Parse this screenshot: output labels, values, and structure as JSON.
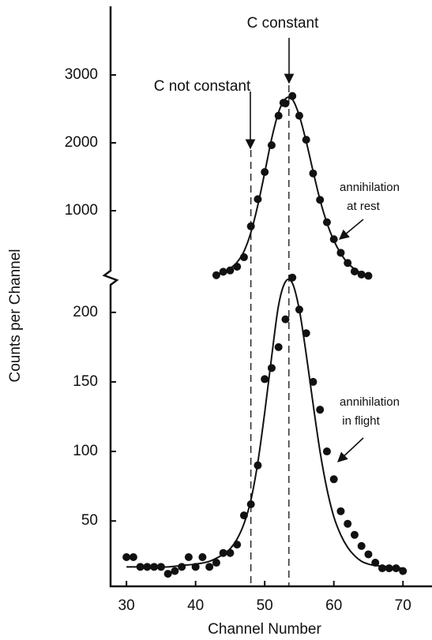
{
  "chart_data": {
    "type": "scatter",
    "xlabel": "Channel Number",
    "ylabel": "Counts per Channel",
    "xlim": [
      27.7,
      74.2
    ],
    "xticks": [
      30,
      40,
      50,
      60,
      70
    ],
    "color": "#111111",
    "markers": [
      48,
      53.5
    ],
    "annotations": [
      {
        "text": "C constant",
        "x": 53.5
      },
      {
        "text": "C not constant",
        "x": 48
      },
      {
        "lines": [
          "annihilation",
          "at rest"
        ]
      },
      {
        "lines": [
          "annihilation",
          "in flight"
        ]
      }
    ],
    "panels": [
      {
        "ylim": [
          0,
          4000
        ],
        "yticks": [
          1000,
          2000,
          3000
        ],
        "x": [
          43,
          44,
          45,
          46,
          47,
          48,
          49,
          50,
          51,
          52,
          52.7,
          53,
          54,
          55,
          56,
          57,
          58,
          59,
          60,
          61,
          62,
          63,
          64,
          65
        ],
        "values": [
          50,
          100,
          120,
          175,
          315,
          770,
          1170,
          1570,
          1965,
          2400,
          2590,
          2580,
          2690,
          2400,
          2045,
          1550,
          1160,
          830,
          580,
          380,
          230,
          105,
          60,
          40
        ],
        "fit_x": [
          43,
          44,
          45,
          46,
          47,
          48,
          49,
          50,
          51,
          52,
          53,
          54,
          55,
          56,
          57,
          58,
          59,
          60,
          61,
          62,
          63,
          64,
          65
        ],
        "fit": [
          50,
          90,
          150,
          240,
          400,
          680,
          1080,
          1560,
          2060,
          2450,
          2650,
          2640,
          2400,
          2020,
          1580,
          1160,
          820,
          560,
          370,
          230,
          140,
          80,
          40
        ]
      },
      {
        "ylim": [
          3,
          226
        ],
        "yticks": [
          50,
          100,
          150,
          200
        ],
        "x": [
          30,
          31,
          32,
          33,
          34,
          35,
          36,
          37,
          38,
          39,
          40,
          41,
          42,
          43,
          44,
          45,
          46,
          47,
          48,
          49,
          50,
          51,
          52,
          53,
          54,
          55,
          56,
          57,
          58,
          59,
          60,
          61,
          62,
          63,
          64,
          65,
          66,
          67,
          68,
          69,
          70
        ],
        "values": [
          24,
          24,
          17,
          17,
          17,
          17,
          12,
          14,
          17,
          24,
          17,
          24,
          17,
          20,
          27,
          27,
          33,
          54,
          62,
          90,
          152,
          160,
          175,
          195,
          225,
          202,
          185,
          150,
          130,
          100,
          80,
          57,
          48,
          40,
          32,
          26,
          20,
          16,
          16,
          16,
          14
        ],
        "fit_x": [
          30,
          32,
          34,
          36,
          38,
          40,
          42,
          44,
          45,
          46,
          47,
          48,
          49,
          50,
          51,
          52,
          53,
          54,
          55,
          56,
          57,
          58,
          59,
          60,
          61,
          62,
          63,
          64,
          65,
          66,
          68,
          70
        ],
        "fit": [
          17,
          17,
          17,
          17,
          18,
          19,
          21,
          26,
          30,
          37,
          48,
          65,
          92,
          128,
          168,
          205,
          222,
          221,
          202,
          170,
          134,
          100,
          73,
          53,
          40,
          31,
          25,
          21,
          19,
          18,
          17,
          16
        ]
      }
    ]
  }
}
